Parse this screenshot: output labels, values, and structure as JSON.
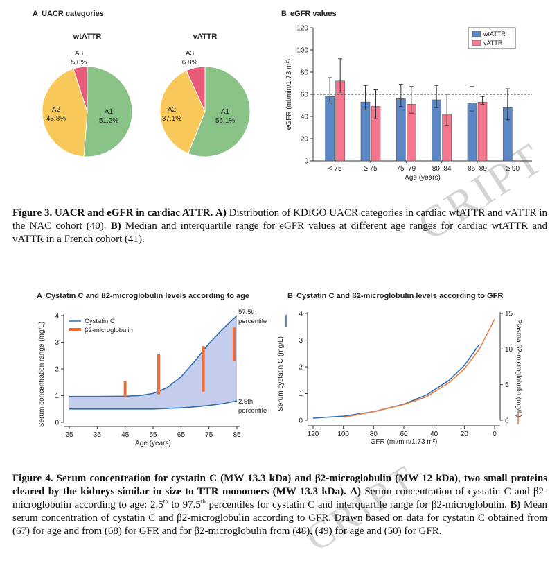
{
  "watermark": {
    "top": "CRIPT",
    "bottom": "CRIPT"
  },
  "fig3": {
    "panel_a_letter": "A",
    "panel_a_title": "UACR categories",
    "panel_b_letter": "B",
    "panel_b_title": "eGFR values",
    "caption": {
      "bold_lead": "Figure 3. UACR and eGFR in cardiac ATTR.",
      "a_label": "A)",
      "a_text": "Distribution of KDIGO UACR categories in cardiac wtATTR and vATTR in the NAC cohort (40).",
      "b_label": "B)",
      "b_text": "Median and interquartile range for eGFR values at different age ranges for cardiac wtATTR and vATTR in a French cohort (41)."
    }
  },
  "fig4": {
    "panel_a_letter": "A",
    "panel_a_title": "Cystatin C and ß2-microglobulin levels according to age",
    "panel_b_letter": "B",
    "panel_b_title": "Cystatin C and ß2-microglobulin levels according to GFR",
    "caption": {
      "bold_text": "Figure 4. Serum concentration for cystatin C (MW 13.3 kDa) and β2-microglobulin (MW 12 kDa), two small proteins cleared by the kidneys similar in size to TTR monomers (MW 13.3 kDa).",
      "a_label": "A)",
      "a_text_1": "Serum concentration of cystatin C and β2-microglobulin according to age: 2.5",
      "a_sup_1": "th",
      "a_text_2": " to 97.5",
      "a_sup_2": "th",
      "a_text_3": " percentiles for cystatin C and interquartile range for β2-microglobulin.",
      "b_label": "B)",
      "b_text": "Mean serum concentration of cystatin C and β2-microglobulin according to GFR. Drawn based on data for cystatin C obtained from (67) for age and from (68) for GFR and for β2-microglobulin from (48), (49) for age and (50) for GFR."
    }
  },
  "chart_data": [
    {
      "type": "pie",
      "title": "wtATTR",
      "slices": [
        {
          "label": "A1",
          "value": 51.2,
          "text": "51.2%",
          "color": "#88c287"
        },
        {
          "label": "A2",
          "value": 43.8,
          "text": "43.8%",
          "color": "#f8c85a"
        },
        {
          "label": "A3",
          "value": 5.0,
          "text": "5.0%",
          "color": "#e85b78"
        }
      ]
    },
    {
      "type": "pie",
      "title": "vATTR",
      "slices": [
        {
          "label": "A1",
          "value": 56.1,
          "text": "56.1%",
          "color": "#88c287"
        },
        {
          "label": "A2",
          "value": 37.1,
          "text": "37.1%",
          "color": "#f8c85a"
        },
        {
          "label": "A3",
          "value": 6.8,
          "text": "6.8%",
          "color": "#e85b78"
        }
      ]
    },
    {
      "type": "bar",
      "ylabel": "eGFR (ml/min/1.73 m²)",
      "xlabel": "Age (years)",
      "ylim": [
        0,
        120
      ],
      "yticks": [
        0,
        20,
        40,
        60,
        80,
        100,
        120
      ],
      "reference_line": 60,
      "legend_position": "top-right",
      "categories": [
        "< 75",
        "≥ 75",
        "75–79",
        "80–84",
        "85–89",
        "≥ 90"
      ],
      "series": [
        {
          "name": "wtATTR",
          "color": "#5b87c7",
          "values": [
            58,
            53,
            56,
            55,
            52,
            48
          ],
          "q1": [
            52,
            46,
            49,
            48,
            45,
            37
          ],
          "q3": [
            75,
            68,
            69,
            68,
            67,
            65
          ]
        },
        {
          "name": "vATTR",
          "color": "#f2778f",
          "values": [
            72,
            49,
            51,
            42,
            53,
            null
          ],
          "q1": [
            62,
            38,
            43,
            32,
            51,
            null
          ],
          "q3": [
            92,
            64,
            67,
            60,
            58,
            null
          ]
        }
      ]
    },
    {
      "type": "area",
      "ylabel": "Serum concentration range (mg/L)",
      "xlabel": "Age (years)",
      "xlim": [
        25,
        85
      ],
      "ylim": [
        0,
        4
      ],
      "xticks": [
        25,
        35,
        45,
        55,
        65,
        75,
        85
      ],
      "yticks": [
        0,
        1,
        2,
        3,
        4
      ],
      "legend_position": "top-left",
      "annotations": {
        "upper": [
          "97.5th",
          "percentile"
        ],
        "lower": [
          "2.5th",
          "percentile"
        ]
      },
      "band": {
        "name": "Cystatin C",
        "x": [
          25,
          35,
          45,
          50,
          55,
          60,
          65,
          70,
          75,
          80,
          85
        ],
        "upper": [
          0.97,
          0.97,
          0.98,
          1.0,
          1.08,
          1.3,
          1.7,
          2.3,
          2.95,
          3.5,
          4.0
        ],
        "lower": [
          0.5,
          0.5,
          0.5,
          0.5,
          0.5,
          0.52,
          0.54,
          0.58,
          0.63,
          0.7,
          0.8
        ]
      },
      "intervals": {
        "name": "β2-microglobulin",
        "x": [
          45,
          57,
          73,
          84
        ],
        "low": [
          0.95,
          1.05,
          1.15,
          2.3
        ],
        "high": [
          1.55,
          2.55,
          2.85,
          3.55
        ]
      },
      "colors": {
        "cystatin": "#2f6db3",
        "band_fill": "#c5cdec",
        "b2m": "#ef6a35"
      }
    },
    {
      "type": "line",
      "ylabel": "Serum cystatin C (mg/L)",
      "y2label": "Plasma β2-microglobulin (mg/L)",
      "xlabel": "GFR (ml/min/1.73 m²)",
      "xlim": [
        120,
        0
      ],
      "ylim": [
        0,
        4
      ],
      "y2lim": [
        0,
        15
      ],
      "xticks": [
        120,
        100,
        80,
        60,
        40,
        20,
        0
      ],
      "yticks": [
        0,
        1,
        2,
        3,
        4
      ],
      "y2ticks": [
        0,
        5,
        10,
        15
      ],
      "series": [
        {
          "name": "Cystatin C",
          "axis": "left",
          "color": "#2f6db3",
          "x": [
            120,
            100,
            80,
            60,
            45,
            30,
            20,
            10
          ],
          "y": [
            0.08,
            0.15,
            0.32,
            0.6,
            0.95,
            1.5,
            2.05,
            2.85
          ]
        },
        {
          "name": "β2-microglobulin",
          "axis": "right",
          "color": "#ef7e45",
          "x": [
            100,
            80,
            60,
            45,
            30,
            20,
            10,
            0
          ],
          "y": [
            0.4,
            1.2,
            2.2,
            3.3,
            5.3,
            7.2,
            10.0,
            14.2
          ]
        }
      ]
    }
  ]
}
